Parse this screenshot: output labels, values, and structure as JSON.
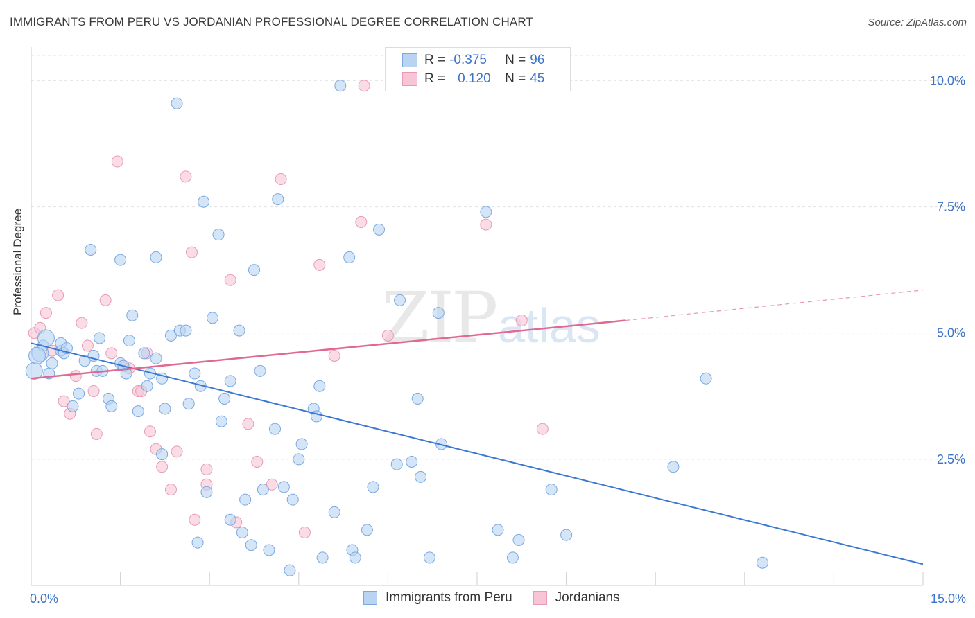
{
  "header": {
    "title": "IMMIGRANTS FROM PERU VS JORDANIAN PROFESSIONAL DEGREE CORRELATION CHART",
    "source": "Source: ZipAtlas.com"
  },
  "legend": {
    "rows": [
      {
        "r_label": "R =",
        "r_value": "-0.375",
        "n_label": "N =",
        "n_value": "96"
      },
      {
        "r_label": "R =",
        "r_value": "0.120",
        "n_label": "N =",
        "n_value": "45"
      }
    ]
  },
  "bottom_legend": {
    "series1": "Immigrants from Peru",
    "series2": "Jordanians"
  },
  "watermark": {
    "zip": "ZIP",
    "atlas": "atlas"
  },
  "colors": {
    "blue_fill": "#b9d3f3",
    "blue_stroke": "#7aa8e0",
    "blue_line": "#3b78d4",
    "pink_fill": "#f7c5d6",
    "pink_stroke": "#e99ab5",
    "pink_line": "#e06891",
    "grid": "#e2e2e2",
    "tick_label": "#3b73c8"
  },
  "chart_data": {
    "type": "scatter",
    "title": "IMMIGRANTS FROM PERU VS JORDANIAN PROFESSIONAL DEGREE CORRELATION CHART",
    "xlabel": "",
    "ylabel": "Professional Degree",
    "xlim": [
      0,
      15
    ],
    "ylim": [
      0,
      10.5
    ],
    "x_tick_labels": [
      "0.0%",
      "15.0%"
    ],
    "y_ticks": [
      2.5,
      5.0,
      7.5,
      10.0
    ],
    "y_tick_labels": [
      "2.5%",
      "5.0%",
      "7.5%",
      "10.0%"
    ],
    "grid": true,
    "series": [
      {
        "name": "Immigrants from Peru",
        "r": -0.375,
        "n": 96,
        "trend": {
          "x": [
            0.0,
            15.0
          ],
          "y": [
            4.8,
            0.42
          ]
        },
        "points": [
          [
            0.05,
            4.25
          ],
          [
            0.15,
            4.6
          ],
          [
            0.2,
            4.75
          ],
          [
            0.25,
            4.9
          ],
          [
            0.3,
            4.2
          ],
          [
            0.35,
            4.4
          ],
          [
            0.5,
            4.65
          ],
          [
            0.5,
            4.8
          ],
          [
            0.55,
            4.6
          ],
          [
            0.6,
            4.7
          ],
          [
            0.7,
            3.55
          ],
          [
            0.8,
            3.8
          ],
          [
            0.9,
            4.45
          ],
          [
            1.0,
            6.65
          ],
          [
            1.1,
            4.25
          ],
          [
            1.15,
            4.9
          ],
          [
            1.2,
            4.25
          ],
          [
            1.3,
            3.7
          ],
          [
            1.35,
            3.55
          ],
          [
            1.5,
            4.4
          ],
          [
            1.55,
            4.35
          ],
          [
            1.5,
            6.45
          ],
          [
            1.6,
            4.2
          ],
          [
            1.65,
            4.85
          ],
          [
            1.7,
            5.35
          ],
          [
            1.8,
            3.45
          ],
          [
            1.9,
            4.6
          ],
          [
            1.95,
            3.95
          ],
          [
            2.0,
            4.2
          ],
          [
            2.1,
            4.5
          ],
          [
            2.1,
            6.5
          ],
          [
            2.2,
            4.1
          ],
          [
            2.25,
            3.5
          ],
          [
            2.35,
            4.95
          ],
          [
            2.45,
            9.55
          ],
          [
            2.5,
            5.05
          ],
          [
            2.6,
            5.05
          ],
          [
            2.65,
            3.6
          ],
          [
            2.75,
            4.2
          ],
          [
            2.8,
            0.85
          ],
          [
            2.85,
            3.95
          ],
          [
            2.9,
            7.6
          ],
          [
            2.95,
            1.85
          ],
          [
            3.05,
            5.3
          ],
          [
            3.15,
            6.95
          ],
          [
            3.2,
            3.25
          ],
          [
            3.25,
            3.7
          ],
          [
            3.35,
            1.3
          ],
          [
            3.35,
            4.05
          ],
          [
            3.5,
            5.05
          ],
          [
            3.55,
            1.05
          ],
          [
            3.6,
            1.7
          ],
          [
            3.7,
            0.8
          ],
          [
            3.75,
            6.25
          ],
          [
            3.85,
            4.25
          ],
          [
            3.9,
            1.9
          ],
          [
            4.0,
            0.7
          ],
          [
            4.1,
            3.1
          ],
          [
            4.15,
            7.65
          ],
          [
            4.25,
            1.95
          ],
          [
            4.35,
            0.3
          ],
          [
            4.4,
            1.7
          ],
          [
            4.5,
            2.5
          ],
          [
            4.55,
            2.8
          ],
          [
            4.75,
            3.5
          ],
          [
            4.8,
            3.35
          ],
          [
            4.85,
            3.95
          ],
          [
            4.9,
            0.55
          ],
          [
            5.1,
            1.45
          ],
          [
            5.2,
            9.9
          ],
          [
            5.35,
            6.5
          ],
          [
            5.4,
            0.7
          ],
          [
            5.45,
            0.55
          ],
          [
            5.65,
            1.1
          ],
          [
            5.75,
            1.95
          ],
          [
            5.85,
            7.05
          ],
          [
            6.15,
            2.4
          ],
          [
            6.2,
            5.65
          ],
          [
            6.4,
            2.45
          ],
          [
            6.5,
            3.7
          ],
          [
            6.55,
            2.15
          ],
          [
            6.7,
            0.55
          ],
          [
            6.85,
            5.4
          ],
          [
            6.9,
            2.8
          ],
          [
            7.65,
            7.4
          ],
          [
            7.85,
            1.1
          ],
          [
            8.1,
            0.55
          ],
          [
            8.2,
            0.9
          ],
          [
            8.75,
            1.9
          ],
          [
            9.0,
            1.0
          ],
          [
            10.8,
            2.35
          ],
          [
            11.35,
            4.1
          ],
          [
            12.3,
            0.45
          ],
          [
            0.1,
            4.55
          ],
          [
            2.2,
            2.6
          ],
          [
            1.05,
            4.55
          ]
        ]
      },
      {
        "name": "Jordanians",
        "r": 0.12,
        "n": 45,
        "trend": {
          "x": [
            0.0,
            10.0
          ],
          "y": [
            4.1,
            5.25
          ]
        },
        "trend_dashed": {
          "x": [
            10.0,
            15.0
          ],
          "y": [
            5.25,
            5.85
          ]
        },
        "points": [
          [
            0.05,
            5.0
          ],
          [
            0.15,
            5.1
          ],
          [
            0.25,
            5.4
          ],
          [
            0.35,
            4.65
          ],
          [
            0.45,
            5.75
          ],
          [
            0.55,
            3.65
          ],
          [
            0.65,
            3.4
          ],
          [
            0.75,
            4.15
          ],
          [
            0.85,
            5.2
          ],
          [
            0.95,
            4.75
          ],
          [
            1.05,
            3.85
          ],
          [
            1.1,
            3.0
          ],
          [
            1.25,
            5.65
          ],
          [
            1.35,
            4.6
          ],
          [
            1.45,
            8.4
          ],
          [
            1.55,
            4.35
          ],
          [
            1.65,
            4.3
          ],
          [
            1.8,
            3.85
          ],
          [
            1.85,
            3.85
          ],
          [
            1.95,
            4.6
          ],
          [
            2.0,
            3.05
          ],
          [
            2.1,
            2.7
          ],
          [
            2.2,
            2.35
          ],
          [
            2.35,
            1.9
          ],
          [
            2.45,
            2.65
          ],
          [
            2.6,
            8.1
          ],
          [
            2.7,
            6.6
          ],
          [
            2.75,
            1.3
          ],
          [
            2.95,
            2.3
          ],
          [
            2.95,
            2.0
          ],
          [
            3.35,
            6.05
          ],
          [
            3.45,
            1.25
          ],
          [
            3.65,
            3.2
          ],
          [
            3.8,
            2.45
          ],
          [
            4.05,
            2.0
          ],
          [
            4.2,
            8.05
          ],
          [
            4.6,
            1.05
          ],
          [
            4.85,
            6.35
          ],
          [
            5.1,
            4.55
          ],
          [
            5.55,
            7.2
          ],
          [
            5.6,
            9.9
          ],
          [
            6.0,
            4.95
          ],
          [
            7.65,
            7.15
          ],
          [
            8.25,
            5.25
          ],
          [
            8.6,
            3.1
          ]
        ]
      }
    ]
  }
}
